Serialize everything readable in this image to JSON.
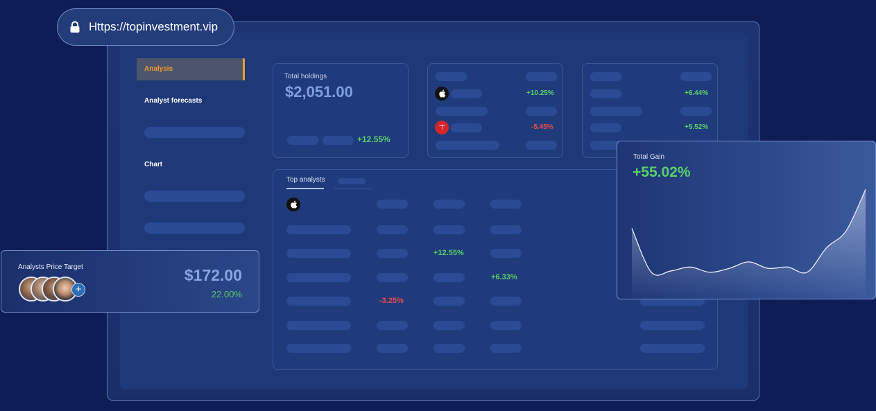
{
  "urlbar": {
    "url": "Https://topinvestment.vip",
    "icon": "lock-icon"
  },
  "sidebar": {
    "items": [
      {
        "label": "Analysis",
        "active": true
      },
      {
        "label": "Analyst forecasts"
      },
      {
        "label": "Chart"
      }
    ]
  },
  "holdings": {
    "label": "Total holdings",
    "value": "$2,051.00",
    "change": "+12.55%"
  },
  "stocks_card_1": {
    "rows": [
      {
        "logo": "apple-logo-icon",
        "change": "+10.25%",
        "trend": "up"
      },
      {
        "logo": "tesla-logo-icon",
        "change": "-5.45%",
        "trend": "down"
      }
    ]
  },
  "stocks_card_2": {
    "changes": [
      "+6.44%",
      "+5.52%"
    ]
  },
  "analysts_table": {
    "tabs": [
      {
        "label": "Top analysts"
      }
    ],
    "values": [
      "+12.55%",
      "+6.33%",
      "-3.25%"
    ]
  },
  "price_target": {
    "label": "Analysts Price Target",
    "value": "$172.00",
    "change": "22.00%"
  },
  "total_gain": {
    "label": "Total Gain",
    "value": "+55.02%",
    "chart_data": {
      "type": "area",
      "values": [
        40,
        6,
        7,
        10,
        6,
        9,
        14,
        9,
        10,
        6,
        25,
        38,
        70
      ]
    }
  },
  "colors": {
    "accent": "#f39a2d",
    "positive": "#58d06a",
    "negative": "#ef4b4b",
    "background": "#0f1d57"
  }
}
